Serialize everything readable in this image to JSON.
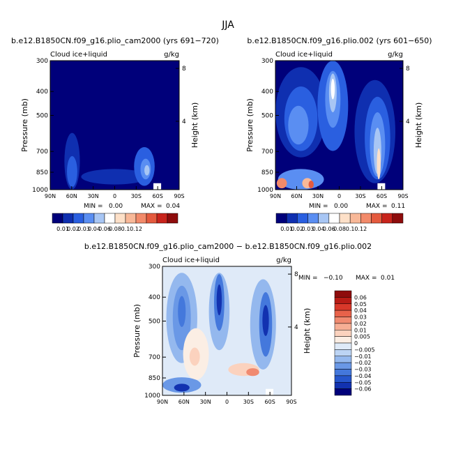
{
  "page_title": "JJA",
  "chart_data": [
    {
      "type": "contour",
      "title": "b.e12.B1850CN.f09_g16.plio_cam2000 (yrs 691−720)",
      "subtitle_left": "Cloud ice+liquid",
      "units": "g/kg",
      "xlabel": "",
      "ylabel": "Pressure (mb)",
      "ylabel_right": "Height (km)",
      "x_ticks": [
        "90N",
        "60N",
        "30N",
        "0",
        "30S",
        "60S",
        "90S"
      ],
      "y_ticks": [
        300,
        400,
        500,
        700,
        850,
        1000
      ],
      "height_ticks": [
        "8",
        "4"
      ],
      "stats": {
        "min_label": "MIN =",
        "min": "0.00",
        "max_label": "MAX =",
        "max": "0.04"
      },
      "colorbar": {
        "labels": [
          "0.01",
          "0.02",
          "0.03",
          "0.04",
          "0.06",
          "0.08",
          "0.1",
          "0.12"
        ],
        "colors": [
          "#00007a",
          "#0f2fb0",
          "#2a5fe0",
          "#5a8ef2",
          "#a8c6f4",
          "#ffffff",
          "#fde0c8",
          "#f8b898",
          "#f28a6a",
          "#e45a3e",
          "#c8241c",
          "#8e0c0c"
        ]
      }
    },
    {
      "type": "contour",
      "title": "b.e12.B1850CN.f09_g16.plio.002 (yrs 601−650)",
      "subtitle_left": "Cloud ice+liquid",
      "units": "g/kg",
      "ylabel": "Pressure (mb)",
      "ylabel_right": "Height (km)",
      "x_ticks": [
        "90N",
        "60N",
        "30N",
        "0",
        "30S",
        "60S",
        "90S"
      ],
      "y_ticks": [
        300,
        400,
        500,
        700,
        850,
        1000
      ],
      "height_ticks": [
        "8",
        "4"
      ],
      "stats": {
        "min_label": "MIN =",
        "min": "0.00",
        "max_label": "MAX =",
        "max": "0.11"
      },
      "colorbar": {
        "labels": [
          "0.01",
          "0.02",
          "0.03",
          "0.04",
          "0.06",
          "0.08",
          "0.1",
          "0.12"
        ],
        "colors": [
          "#00007a",
          "#0f2fb0",
          "#2a5fe0",
          "#5a8ef2",
          "#a8c6f4",
          "#ffffff",
          "#fde0c8",
          "#f8b898",
          "#f28a6a",
          "#e45a3e",
          "#c8241c",
          "#8e0c0c"
        ]
      }
    },
    {
      "type": "contour",
      "title": "b.e12.B1850CN.f09_g16.plio_cam2000 − b.e12.B1850CN.f09_g16.plio.002",
      "subtitle_left": "Cloud ice+liquid",
      "units": "g/kg",
      "ylabel": "Pressure (mb)",
      "ylabel_right": "Height (km)",
      "x_ticks": [
        "90N",
        "60N",
        "30N",
        "0",
        "30S",
        "60S",
        "90S"
      ],
      "y_ticks": [
        300,
        400,
        500,
        700,
        850,
        1000
      ],
      "height_ticks": [
        "8",
        "4"
      ],
      "stats": {
        "min_label": "MIN =",
        "min": "−0.10",
        "max_label": "MAX =",
        "max": "0.01"
      },
      "colorbar": {
        "labels": [
          "0.06",
          "0.05",
          "0.04",
          "0.03",
          "0.02",
          "0.01",
          "0.005",
          "0",
          "−0.005",
          "−0.01",
          "−0.02",
          "−0.03",
          "−0.04",
          "−0.05",
          "−0.06"
        ],
        "colors": [
          "#8e0c0c",
          "#b81c16",
          "#d8382a",
          "#e8624a",
          "#f08a70",
          "#f6ae94",
          "#fbd2be",
          "#fbeee4",
          "#dfeaf8",
          "#bcd4f4",
          "#94b8ee",
          "#6a98e6",
          "#4478dc",
          "#2656cc",
          "#1232b0",
          "#00007a"
        ]
      }
    }
  ]
}
